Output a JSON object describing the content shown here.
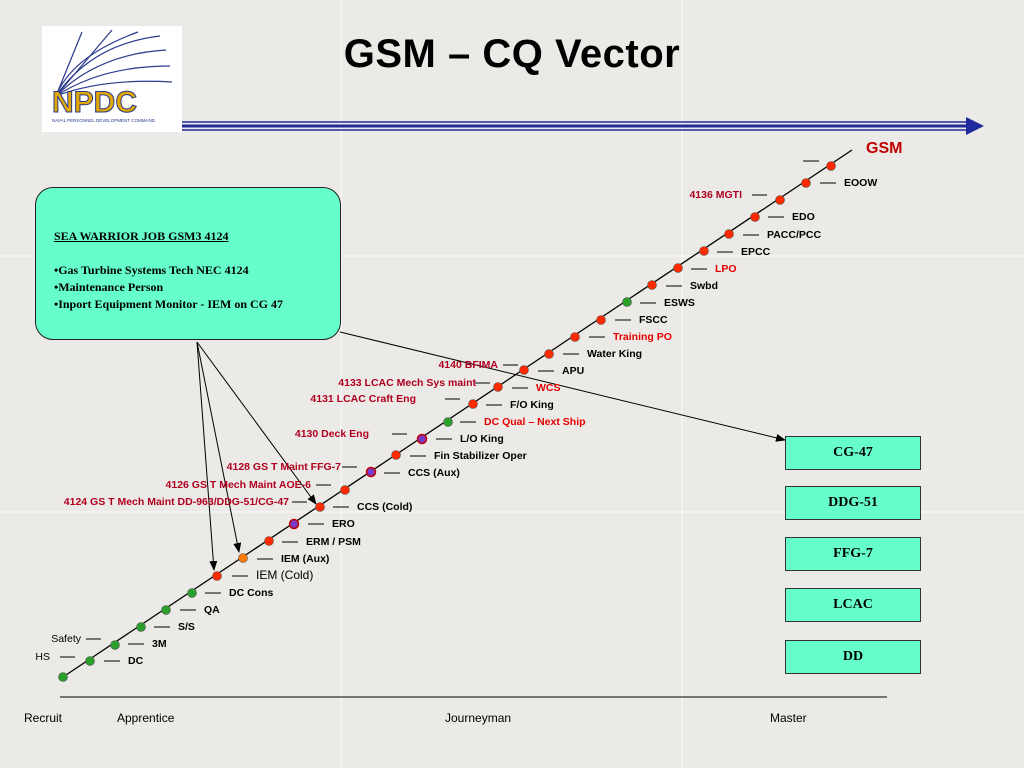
{
  "title": "GSM – CQ Vector",
  "logo": {
    "text": "NPDC",
    "subtext": "NAVAL PERSONNEL DEVELOPMENT COMMAND"
  },
  "gsm_label": "GSM",
  "info_box": {
    "title": "SEA WARRIOR JOB GSM3 4124",
    "lines": [
      "•Gas Turbine Systems Tech NEC 4124",
      "•Maintenance Person",
      "•Inport Equipment Monitor - IEM  on CG 47"
    ]
  },
  "ships": [
    "CG-47",
    "DDG-51",
    "FFG-7",
    "LCAC",
    "DD"
  ],
  "career_levels": [
    "Recruit",
    "Apprentice",
    "Journeyman",
    "Master"
  ],
  "right_labels": [
    {
      "text": "DC",
      "color": "black"
    },
    {
      "text": "3M",
      "color": "black"
    },
    {
      "text": "S/S",
      "color": "black"
    },
    {
      "text": "QA",
      "color": "black"
    },
    {
      "text": "DC Cons",
      "color": "black"
    },
    {
      "text": "IEM (Cold)",
      "color": "black"
    },
    {
      "text": "IEM (Aux)",
      "color": "black"
    },
    {
      "text": "ERM / PSM",
      "color": "black"
    },
    {
      "text": "ERO",
      "color": "black"
    },
    {
      "text": "CCS (Cold)",
      "color": "black"
    },
    {
      "text": "CCS (Aux)",
      "color": "black"
    },
    {
      "text": "Fin Stabilizer Oper",
      "color": "black"
    },
    {
      "text": "L/O King",
      "color": "black"
    },
    {
      "text": "DC Qual – Next Ship",
      "color": "red"
    },
    {
      "text": "F/O King",
      "color": "black"
    },
    {
      "text": "WCS",
      "color": "red"
    },
    {
      "text": "APU",
      "color": "black"
    },
    {
      "text": "Water King",
      "color": "black"
    },
    {
      "text": "Training PO",
      "color": "red"
    },
    {
      "text": "FSCC",
      "color": "black"
    },
    {
      "text": "ESWS",
      "color": "black"
    },
    {
      "text": "Swbd",
      "color": "black"
    },
    {
      "text": "LPO",
      "color": "red"
    },
    {
      "text": "EPCC",
      "color": "black"
    },
    {
      "text": "PACC/PCC",
      "color": "black"
    },
    {
      "text": "EDO",
      "color": "black"
    },
    {
      "text": "EOOW",
      "color": "black"
    }
  ],
  "left_labels": [
    {
      "text": "HS",
      "color": "black"
    },
    {
      "text": "Safety",
      "color": "black"
    },
    {
      "text": "4124 GS T Mech Maint DD-963/DDG-51/CG-47",
      "color": "darkred"
    },
    {
      "text": "4126 GS T Mech Maint AOE-6",
      "color": "darkred"
    },
    {
      "text": "4128 GS T Maint FFG-7",
      "color": "darkred"
    },
    {
      "text": "4130 Deck Eng",
      "color": "darkred"
    },
    {
      "text": "4131 LCAC Craft Eng",
      "color": "darkred"
    },
    {
      "text": "4133 LCAC Mech Sys maint",
      "color": "darkred"
    },
    {
      "text": "4140 BFIMA",
      "color": "darkred"
    },
    {
      "text": "4136 MGTI",
      "color": "darkred"
    }
  ],
  "colors": {
    "accent_line": "#1f2a9c",
    "box_fill": "#66ffcc",
    "dot_red": "#ff2a00",
    "dot_orange": "#ff7a00",
    "dot_green": "#2aa02a",
    "dot_purple": "#7a3ac8",
    "label_red": "#e60000",
    "label_darkred": "#b00020",
    "gsm_red": "#c00000"
  }
}
